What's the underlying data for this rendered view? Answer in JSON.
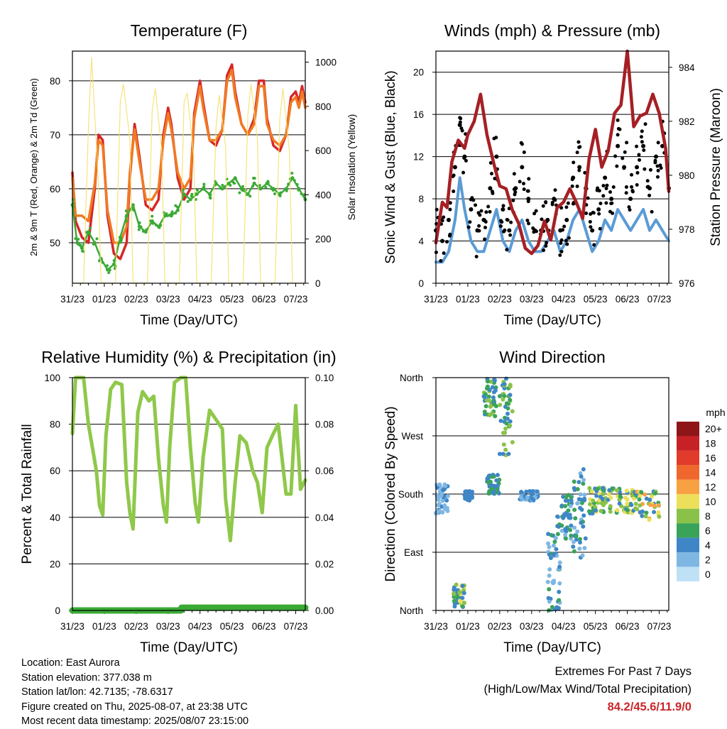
{
  "x_tick_labels": [
    "31/23",
    "01/23",
    "02/23",
    "03/23",
    "04/23",
    "05/23",
    "06/23",
    "07/23"
  ],
  "colors": {
    "temp_2m": "#d62728",
    "temp_9m": "#f07a24",
    "dewpoint": "#3aaa35",
    "solar": "#f5e06a",
    "wind": "#5b9bd5",
    "gust": "#000000",
    "pressure": "#a52025",
    "rh": "#8fc84a",
    "precip": "#3aaa35"
  },
  "chart_data": [
    {
      "id": "temperature",
      "type": "line",
      "title": "Temperature (F)",
      "xlabel": "Time (Day/UTC)",
      "ylabel": "2m & 9m T (Red, Orange) & 2m Td (Green)",
      "y2label": "Solar Insolation (Yellow)",
      "ylim": [
        42.5,
        85.5
      ],
      "y2lim": [
        0,
        1050
      ],
      "yticks": [
        50,
        60,
        70,
        80
      ],
      "y2ticks": [
        0,
        200,
        400,
        600,
        800,
        1000
      ],
      "x_days": [
        0,
        7.3
      ],
      "series": [
        {
          "id": "t2m",
          "axis": "left",
          "color": "temp_2m",
          "x": [
            0,
            0.1,
            0.3,
            0.5,
            0.7,
            0.82,
            0.95,
            1.1,
            1.3,
            1.5,
            1.7,
            1.8,
            1.95,
            2.1,
            2.3,
            2.5,
            2.7,
            2.85,
            3.0,
            3.1,
            3.3,
            3.5,
            3.7,
            3.82,
            4.0,
            4.1,
            4.3,
            4.5,
            4.7,
            4.85,
            5.0,
            5.1,
            5.3,
            5.5,
            5.7,
            5.85,
            6.0,
            6.1,
            6.3,
            6.5,
            6.7,
            6.85,
            7.0,
            7.1,
            7.2,
            7.3
          ],
          "y": [
            63,
            54,
            51,
            50,
            60,
            70,
            69,
            55,
            48,
            47,
            50,
            62,
            72,
            66,
            57,
            56,
            58,
            70,
            75,
            72,
            62,
            58,
            60,
            74,
            80,
            76,
            69,
            68,
            71,
            81,
            83,
            78,
            72,
            70,
            73,
            80,
            80,
            73,
            68,
            67,
            70,
            77,
            78,
            76,
            79,
            76
          ]
        },
        {
          "id": "t9m",
          "axis": "left",
          "color": "temp_9m",
          "x": [
            0,
            0.1,
            0.3,
            0.5,
            0.7,
            0.82,
            0.95,
            1.1,
            1.3,
            1.5,
            1.7,
            1.8,
            1.95,
            2.1,
            2.3,
            2.5,
            2.7,
            2.85,
            3.0,
            3.1,
            3.3,
            3.5,
            3.7,
            3.82,
            4.0,
            4.1,
            4.3,
            4.5,
            4.7,
            4.85,
            5.0,
            5.1,
            5.3,
            5.5,
            5.7,
            5.85,
            6.0,
            6.1,
            6.3,
            6.5,
            6.7,
            6.85,
            7.0,
            7.1,
            7.2,
            7.3
          ],
          "y": [
            62,
            55,
            55,
            54,
            61,
            69,
            68,
            56,
            50,
            50,
            53,
            63,
            71,
            65,
            58,
            58,
            60,
            69,
            74,
            71,
            63,
            60,
            62,
            73,
            79,
            75,
            69,
            69,
            71,
            80,
            82,
            77,
            72,
            70,
            72,
            79,
            79,
            72,
            69,
            68,
            70,
            76,
            77,
            75,
            78,
            75
          ]
        },
        {
          "id": "td2m",
          "axis": "left",
          "color": "dewpoint",
          "x": [
            0,
            0.15,
            0.3,
            0.5,
            0.7,
            0.9,
            1.1,
            1.3,
            1.5,
            1.7,
            1.9,
            2.1,
            2.3,
            2.5,
            2.7,
            2.9,
            3.1,
            3.3,
            3.5,
            3.7,
            3.9,
            4.1,
            4.3,
            4.5,
            4.7,
            4.9,
            5.1,
            5.3,
            5.5,
            5.7,
            5.9,
            6.1,
            6.3,
            6.5,
            6.7,
            6.9,
            7.1,
            7.3
          ],
          "y": [
            57,
            50,
            49,
            52,
            50,
            47,
            45,
            46,
            51,
            55,
            57,
            53,
            52,
            54,
            53,
            55,
            55,
            56,
            59,
            58,
            59,
            60,
            59,
            61,
            60,
            61,
            62,
            60,
            59,
            61,
            60,
            61,
            60,
            59,
            60,
            62,
            60,
            58
          ]
        },
        {
          "id": "solar",
          "axis": "right",
          "color": "solar",
          "x": [
            0,
            0.35,
            0.5,
            0.6,
            0.8,
            0.9,
            1.35,
            1.5,
            1.6,
            1.8,
            1.9,
            2.35,
            2.5,
            2.6,
            2.8,
            2.9,
            3.35,
            3.5,
            3.6,
            3.8,
            3.9,
            4.35,
            4.5,
            4.6,
            4.8,
            4.9,
            5.35,
            5.5,
            5.6,
            5.8,
            5.9,
            6.35,
            6.5,
            6.6,
            6.8,
            6.9,
            7.3
          ],
          "y": [
            0,
            0,
            700,
            1020,
            500,
            0,
            0,
            820,
            900,
            650,
            0,
            0,
            780,
            880,
            600,
            0,
            0,
            820,
            860,
            580,
            0,
            0,
            700,
            850,
            620,
            0,
            0,
            760,
            900,
            650,
            0,
            0,
            740,
            880,
            600,
            0,
            0
          ]
        }
      ]
    },
    {
      "id": "winds",
      "type": "line",
      "title": "Winds (mph) & Pressure (mb)",
      "xlabel": "Time (Day/UTC)",
      "ylabel": "Sonic Wind & Gust (Blue, Black)",
      "y2label": "Station Pressure (Maroon)",
      "ylim": [
        0,
        22
      ],
      "y2lim": [
        976,
        984.6
      ],
      "yticks": [
        0,
        4,
        8,
        12,
        16,
        20
      ],
      "y2ticks": [
        976,
        978,
        980,
        982,
        984
      ],
      "x_days": [
        0,
        7.3
      ],
      "series": [
        {
          "id": "wind",
          "axis": "left",
          "color": "wind",
          "x": [
            0,
            0.2,
            0.4,
            0.6,
            0.75,
            0.9,
            1.1,
            1.3,
            1.5,
            1.7,
            1.9,
            2.1,
            2.3,
            2.5,
            2.7,
            2.9,
            3.1,
            3.3,
            3.5,
            3.7,
            3.9,
            4.1,
            4.3,
            4.5,
            4.7,
            4.9,
            5.1,
            5.3,
            5.5,
            5.7,
            5.9,
            6.1,
            6.3,
            6.5,
            6.7,
            6.9,
            7.1,
            7.3
          ],
          "y": [
            2,
            2,
            3,
            6,
            10,
            7,
            4,
            3,
            3,
            5,
            7,
            4,
            3,
            5,
            6,
            4,
            3,
            3,
            4,
            5,
            3,
            4,
            6,
            7,
            5,
            3,
            4,
            6,
            5,
            7,
            6,
            5,
            6,
            7,
            5,
            6,
            5,
            4
          ]
        },
        {
          "id": "gust",
          "axis": "left",
          "color": "gust",
          "x": [
            0,
            0.2,
            0.4,
            0.6,
            0.75,
            0.9,
            1.1,
            1.3,
            1.5,
            1.7,
            1.9,
            2.1,
            2.3,
            2.5,
            2.7,
            2.9,
            3.1,
            3.3,
            3.5,
            3.7,
            3.9,
            4.1,
            4.3,
            4.5,
            4.7,
            4.9,
            5.1,
            5.3,
            5.5,
            5.7,
            5.9,
            6.1,
            6.3,
            6.5,
            6.7,
            6.9,
            7.1,
            7.3
          ],
          "y": [
            5,
            4,
            6,
            11,
            15,
            12,
            7,
            5,
            6,
            9,
            12,
            7,
            5,
            9,
            11,
            8,
            5,
            5,
            6,
            8,
            5,
            6,
            10,
            11,
            9,
            5,
            7,
            10,
            8,
            13,
            11,
            8,
            11,
            13,
            9,
            12,
            13,
            9
          ]
        },
        {
          "id": "pressure",
          "axis": "right",
          "color": "pressure",
          "x": [
            0,
            0.2,
            0.35,
            0.5,
            0.7,
            0.9,
            1.0,
            1.2,
            1.4,
            1.6,
            1.8,
            2.0,
            2.2,
            2.4,
            2.6,
            2.8,
            3.0,
            3.2,
            3.4,
            3.6,
            3.8,
            4.0,
            4.2,
            4.4,
            4.6,
            4.8,
            5.0,
            5.2,
            5.4,
            5.6,
            5.8,
            6.0,
            6.2,
            6.4,
            6.6,
            6.8,
            7.0,
            7.2,
            7.3
          ],
          "y": [
            977.5,
            979,
            978.8,
            980.5,
            981.3,
            981,
            981.5,
            982,
            983,
            981.5,
            980.5,
            979.6,
            979.5,
            978.7,
            978.2,
            977.3,
            977.1,
            977.4,
            978.3,
            977.6,
            978.8,
            979,
            979.5,
            979,
            978.4,
            980.6,
            981.7,
            980.3,
            980.9,
            982.3,
            982.6,
            984.6,
            981.8,
            982.2,
            982.3,
            983,
            982.3,
            981,
            979.4
          ]
        }
      ]
    },
    {
      "id": "humidity",
      "type": "line",
      "title": "Relative Humidity (%) & Precipitation (in)",
      "xlabel": "Time (Day/UTC)",
      "ylabel": "Percent & Total Rainfall",
      "ylim": [
        0,
        100
      ],
      "y2lim": [
        0,
        0.1
      ],
      "yticks": [
        0,
        20,
        40,
        60,
        80,
        100
      ],
      "y2ticks": [
        "0.00",
        "0.02",
        "0.04",
        "0.06",
        "0.08",
        "0.10"
      ],
      "x_days": [
        0,
        7.3
      ],
      "series": [
        {
          "id": "rh",
          "axis": "left",
          "color": "rh",
          "x": [
            0,
            0.1,
            0.2,
            0.35,
            0.5,
            0.6,
            0.75,
            0.85,
            0.95,
            1.05,
            1.2,
            1.35,
            1.55,
            1.7,
            1.8,
            1.9,
            2.05,
            2.2,
            2.4,
            2.55,
            2.7,
            2.85,
            2.95,
            3.05,
            3.2,
            3.4,
            3.55,
            3.7,
            3.85,
            3.95,
            4.1,
            4.3,
            4.5,
            4.7,
            4.8,
            4.95,
            5.1,
            5.25,
            5.45,
            5.65,
            5.8,
            5.95,
            6.1,
            6.3,
            6.45,
            6.6,
            6.7,
            6.85,
            7.0,
            7.15,
            7.3
          ],
          "y": [
            76,
            100,
            100,
            100,
            80,
            72,
            60,
            45,
            41,
            75,
            95,
            98,
            97,
            55,
            42,
            35,
            85,
            94,
            90,
            92,
            65,
            45,
            38,
            70,
            98,
            100,
            100,
            70,
            46,
            38,
            66,
            86,
            82,
            78,
            48,
            30,
            55,
            75,
            72,
            60,
            55,
            42,
            70,
            76,
            80,
            62,
            50,
            50,
            88,
            52,
            56
          ]
        },
        {
          "id": "precip",
          "axis": "right",
          "color": "precip",
          "x": [
            0,
            3.4,
            3.42,
            7.3
          ],
          "y": [
            0.0,
            0.0,
            0.0012,
            0.0012
          ]
        }
      ]
    },
    {
      "id": "direction",
      "type": "scatter",
      "title": "Wind Direction",
      "xlabel": "Time (Day/UTC)",
      "ylabel": "Direction (Colored By Speed)",
      "ylim": [
        0,
        360
      ],
      "ytick_labels": [
        "North",
        "East",
        "South",
        "West",
        "North"
      ],
      "x_days": [
        0,
        7.3
      ],
      "colorbar": {
        "title": "mph",
        "labels": [
          "20+",
          "18",
          "16",
          "14",
          "12",
          "10",
          "8",
          "6",
          "4",
          "2",
          "0"
        ],
        "colors": [
          "#8e1518",
          "#c62127",
          "#e13b2b",
          "#f0672d",
          "#f8a142",
          "#ece05a",
          "#8ac249",
          "#3aa35a",
          "#3f86c6",
          "#7fb7e3",
          "#bfe1f6"
        ]
      },
      "clusters": [
        {
          "x": [
            0.0,
            0.4
          ],
          "dir": [
            150,
            200
          ],
          "speed": [
            1,
            4
          ]
        },
        {
          "x": [
            0.55,
            0.9
          ],
          "dir": [
            5,
            40
          ],
          "speed": [
            3,
            10
          ]
        },
        {
          "x": [
            0.9,
            1.15
          ],
          "dir": [
            170,
            185
          ],
          "speed": [
            3,
            5
          ]
        },
        {
          "x": [
            1.5,
            1.9
          ],
          "dir": [
            300,
            360
          ],
          "speed": [
            3,
            8
          ]
        },
        {
          "x": [
            1.6,
            2.0
          ],
          "dir": [
            180,
            210
          ],
          "speed": [
            3,
            6
          ]
        },
        {
          "x": [
            2.0,
            2.4
          ],
          "dir": [
            240,
            360
          ],
          "speed": [
            3,
            9
          ]
        },
        {
          "x": [
            2.6,
            3.2
          ],
          "dir": [
            170,
            185
          ],
          "speed": [
            2,
            5
          ]
        },
        {
          "x": [
            3.5,
            3.9
          ],
          "dir": [
            0,
            120
          ],
          "speed": [
            1,
            6
          ]
        },
        {
          "x": [
            3.8,
            4.3
          ],
          "dir": [
            110,
            180
          ],
          "speed": [
            2,
            7
          ]
        },
        {
          "x": [
            4.3,
            4.7
          ],
          "dir": [
            80,
            220
          ],
          "speed": [
            2,
            6
          ]
        },
        {
          "x": [
            4.8,
            5.4
          ],
          "dir": [
            150,
            190
          ],
          "speed": [
            3,
            10
          ]
        },
        {
          "x": [
            5.4,
            6.2
          ],
          "dir": [
            150,
            190
          ],
          "speed": [
            3,
            11
          ]
        },
        {
          "x": [
            6.2,
            7.0
          ],
          "dir": [
            140,
            185
          ],
          "speed": [
            3,
            12
          ]
        }
      ]
    }
  ],
  "info": {
    "location": "Location: East Aurora",
    "elevation": "Station elevation: 377.038 m",
    "latlon": "Station lat/lon: 42.7135; -78.6317",
    "created": "Figure created on Thu, 2025-08-07, at 23:38 UTC",
    "latest": "Most recent data timestamp: 2025/08/07 23:15:00"
  },
  "extremes": {
    "title": "Extremes For Past 7 Days",
    "subtitle": "(High/Low/Max Wind/Total Precipitation)",
    "values": "84.2/45.6/11.9/0"
  }
}
